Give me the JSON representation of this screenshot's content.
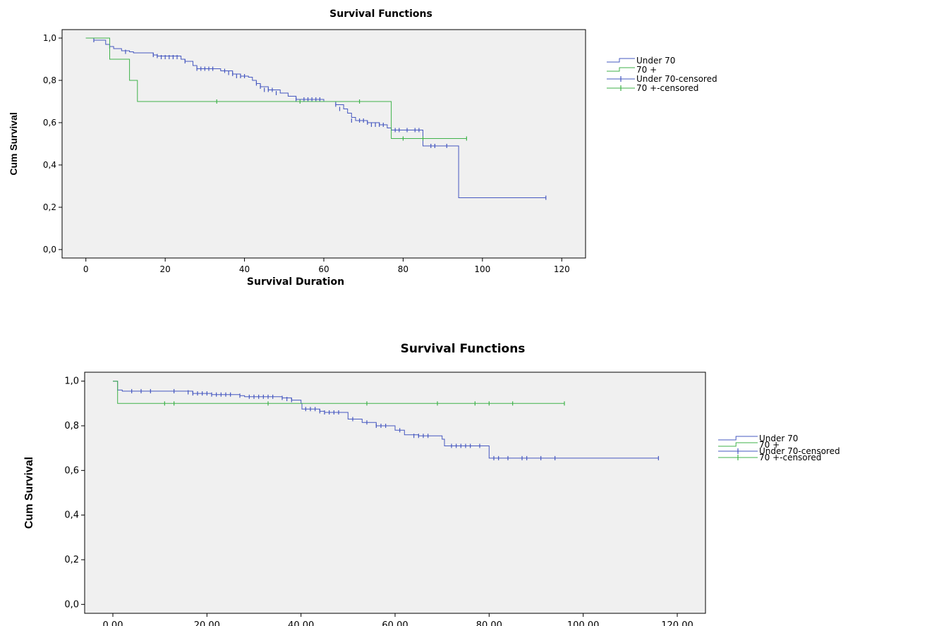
{
  "colors": {
    "blue": "#4658c0",
    "green": "#3fb24a",
    "plot_bg": "#f0f0f0",
    "frame": "#000000"
  },
  "chart_data": [
    {
      "type": "line",
      "subtype": "kaplan-meier step",
      "title": "Survival Functions",
      "xlabel": "Survival Duration",
      "ylabel": "Cum Survival",
      "xlim": [
        -6,
        126
      ],
      "ylim": [
        -0.04,
        1.04
      ],
      "xticks": [
        0,
        20,
        40,
        60,
        80,
        100,
        120
      ],
      "xtick_labels": [
        "0",
        "20",
        "40",
        "60",
        "80",
        "100",
        "120"
      ],
      "yticks": [
        0,
        0.2,
        0.4,
        0.6,
        0.8,
        1.0
      ],
      "ytick_labels": [
        "0,0",
        "0,2",
        "0,4",
        "0,6",
        "0,8",
        "1,0"
      ],
      "grid": false,
      "legend_position": "right",
      "legend": [
        "Under 70",
        "70 +",
        "Under 70-censored",
        "70 +-censored"
      ],
      "series": [
        {
          "name": "Under 70",
          "color": "blue",
          "steps": [
            [
              0,
              1.0
            ],
            [
              1,
              1.0
            ],
            [
              2,
              0.99
            ],
            [
              5,
              0.97
            ],
            [
              6,
              0.96
            ],
            [
              7,
              0.95
            ],
            [
              9,
              0.94
            ],
            [
              11,
              0.935
            ],
            [
              12,
              0.93
            ],
            [
              17,
              0.92
            ],
            [
              18,
              0.915
            ],
            [
              24,
              0.9
            ],
            [
              25,
              0.89
            ],
            [
              27,
              0.87
            ],
            [
              28,
              0.855
            ],
            [
              34,
              0.845
            ],
            [
              37,
              0.83
            ],
            [
              39,
              0.82
            ],
            [
              41,
              0.815
            ],
            [
              42,
              0.8
            ],
            [
              43,
              0.785
            ],
            [
              44,
              0.77
            ],
            [
              46,
              0.755
            ],
            [
              49,
              0.74
            ],
            [
              51,
              0.725
            ],
            [
              53,
              0.71
            ],
            [
              60,
              0.7
            ],
            [
              63,
              0.685
            ],
            [
              65,
              0.665
            ],
            [
              66,
              0.645
            ],
            [
              67,
              0.625
            ],
            [
              68,
              0.61
            ],
            [
              71,
              0.6
            ],
            [
              74,
              0.59
            ],
            [
              76,
              0.575
            ],
            [
              77,
              0.565
            ],
            [
              85,
              0.49
            ],
            [
              94,
              0.245
            ],
            [
              116,
              0.245
            ]
          ],
          "censored": [
            [
              2,
              0.99
            ],
            [
              6,
              0.96
            ],
            [
              10,
              0.935
            ],
            [
              17,
              0.92
            ],
            [
              18,
              0.915
            ],
            [
              19,
              0.91
            ],
            [
              20,
              0.91
            ],
            [
              21,
              0.91
            ],
            [
              22,
              0.91
            ],
            [
              23,
              0.91
            ],
            [
              25,
              0.89
            ],
            [
              28,
              0.855
            ],
            [
              29,
              0.855
            ],
            [
              30,
              0.855
            ],
            [
              31,
              0.855
            ],
            [
              32,
              0.855
            ],
            [
              35,
              0.845
            ],
            [
              36,
              0.835
            ],
            [
              37,
              0.83
            ],
            [
              38,
              0.82
            ],
            [
              39,
              0.82
            ],
            [
              40,
              0.82
            ],
            [
              43,
              0.785
            ],
            [
              44,
              0.77
            ],
            [
              45,
              0.755
            ],
            [
              46,
              0.755
            ],
            [
              47,
              0.755
            ],
            [
              48,
              0.74
            ],
            [
              53,
              0.71
            ],
            [
              55,
              0.71
            ],
            [
              56,
              0.71
            ],
            [
              57,
              0.71
            ],
            [
              58,
              0.71
            ],
            [
              59,
              0.71
            ],
            [
              63,
              0.685
            ],
            [
              64,
              0.665
            ],
            [
              67,
              0.61
            ],
            [
              69,
              0.61
            ],
            [
              70,
              0.61
            ],
            [
              71,
              0.6
            ],
            [
              72,
              0.59
            ],
            [
              73,
              0.59
            ],
            [
              74,
              0.59
            ],
            [
              75,
              0.59
            ],
            [
              78,
              0.565
            ],
            [
              79,
              0.565
            ],
            [
              81,
              0.565
            ],
            [
              83,
              0.565
            ],
            [
              84,
              0.565
            ],
            [
              87,
              0.49
            ],
            [
              88,
              0.49
            ],
            [
              91,
              0.49
            ],
            [
              116,
              0.245
            ]
          ]
        },
        {
          "name": "70 +",
          "color": "green",
          "steps": [
            [
              0,
              1.0
            ],
            [
              6,
              0.9
            ],
            [
              11,
              0.8
            ],
            [
              13,
              0.7
            ],
            [
              77,
              0.525
            ],
            [
              96,
              0.525
            ]
          ],
          "censored": [
            [
              33,
              0.7
            ],
            [
              54,
              0.7
            ],
            [
              69,
              0.7
            ],
            [
              80,
              0.525
            ],
            [
              85,
              0.525
            ],
            [
              96,
              0.525
            ]
          ]
        }
      ]
    },
    {
      "type": "line",
      "subtype": "kaplan-meier step",
      "title": "Survival Functions",
      "xlabel": "",
      "ylabel": "Cum Survival",
      "xlim": [
        -6,
        126
      ],
      "ylim": [
        -0.04,
        1.04
      ],
      "xticks": [
        0,
        20,
        40,
        60,
        80,
        100,
        120
      ],
      "xtick_labels": [
        "0.00",
        "20.00",
        "40.00",
        "60.00",
        "80.00",
        "100.00",
        "120.00"
      ],
      "yticks": [
        0,
        0.2,
        0.4,
        0.6,
        0.8,
        1.0
      ],
      "ytick_labels": [
        "0,0",
        "0,2",
        "0,4",
        "0,6",
        "0,8",
        "1,0"
      ],
      "grid": false,
      "legend_position": "right",
      "legend": [
        "Under 70",
        "70 +",
        "Under 70-censored",
        "70 +-censored"
      ],
      "series": [
        {
          "name": "Under 70",
          "color": "blue",
          "steps": [
            [
              0,
              1.0
            ],
            [
              1,
              0.96
            ],
            [
              2,
              0.955
            ],
            [
              17,
              0.945
            ],
            [
              21,
              0.94
            ],
            [
              27,
              0.935
            ],
            [
              28,
              0.93
            ],
            [
              36,
              0.925
            ],
            [
              38,
              0.915
            ],
            [
              40,
              0.9
            ],
            [
              40.2,
              0.875
            ],
            [
              44,
              0.865
            ],
            [
              45,
              0.86
            ],
            [
              50,
              0.83
            ],
            [
              53,
              0.815
            ],
            [
              56,
              0.8
            ],
            [
              60,
              0.78
            ],
            [
              62,
              0.76
            ],
            [
              65,
              0.755
            ],
            [
              70,
              0.74
            ],
            [
              70.5,
              0.71
            ],
            [
              80,
              0.655
            ],
            [
              116,
              0.655
            ]
          ],
          "censored": [
            [
              4,
              0.955
            ],
            [
              6,
              0.955
            ],
            [
              8,
              0.955
            ],
            [
              13,
              0.955
            ],
            [
              16,
              0.95
            ],
            [
              17,
              0.945
            ],
            [
              18,
              0.945
            ],
            [
              19,
              0.945
            ],
            [
              20,
              0.945
            ],
            [
              21,
              0.94
            ],
            [
              22,
              0.94
            ],
            [
              23,
              0.94
            ],
            [
              24,
              0.94
            ],
            [
              25,
              0.94
            ],
            [
              27,
              0.935
            ],
            [
              29,
              0.93
            ],
            [
              30,
              0.93
            ],
            [
              31,
              0.93
            ],
            [
              32,
              0.93
            ],
            [
              33,
              0.93
            ],
            [
              34,
              0.93
            ],
            [
              36,
              0.925
            ],
            [
              37,
              0.92
            ],
            [
              38,
              0.915
            ],
            [
              41,
              0.875
            ],
            [
              42,
              0.875
            ],
            [
              43,
              0.875
            ],
            [
              44,
              0.865
            ],
            [
              45,
              0.86
            ],
            [
              46,
              0.86
            ],
            [
              47,
              0.86
            ],
            [
              48,
              0.86
            ],
            [
              51,
              0.83
            ],
            [
              54,
              0.815
            ],
            [
              56,
              0.8
            ],
            [
              57,
              0.8
            ],
            [
              58,
              0.8
            ],
            [
              61,
              0.78
            ],
            [
              64,
              0.755
            ],
            [
              65,
              0.755
            ],
            [
              66,
              0.755
            ],
            [
              67,
              0.755
            ],
            [
              72,
              0.71
            ],
            [
              73,
              0.71
            ],
            [
              74,
              0.71
            ],
            [
              75,
              0.71
            ],
            [
              76,
              0.71
            ],
            [
              78,
              0.71
            ],
            [
              81,
              0.655
            ],
            [
              82,
              0.655
            ],
            [
              84,
              0.655
            ],
            [
              87,
              0.655
            ],
            [
              88,
              0.655
            ],
            [
              91,
              0.655
            ],
            [
              94,
              0.655
            ],
            [
              116,
              0.655
            ]
          ]
        },
        {
          "name": "70 +",
          "color": "green",
          "steps": [
            [
              0,
              1.0
            ],
            [
              1,
              0.9
            ],
            [
              96,
              0.9
            ]
          ],
          "censored": [
            [
              11,
              0.9
            ],
            [
              13,
              0.9
            ],
            [
              33,
              0.9
            ],
            [
              54,
              0.9
            ],
            [
              69,
              0.9
            ],
            [
              77,
              0.9
            ],
            [
              80,
              0.9
            ],
            [
              85,
              0.9
            ],
            [
              96,
              0.9
            ]
          ]
        }
      ]
    }
  ]
}
